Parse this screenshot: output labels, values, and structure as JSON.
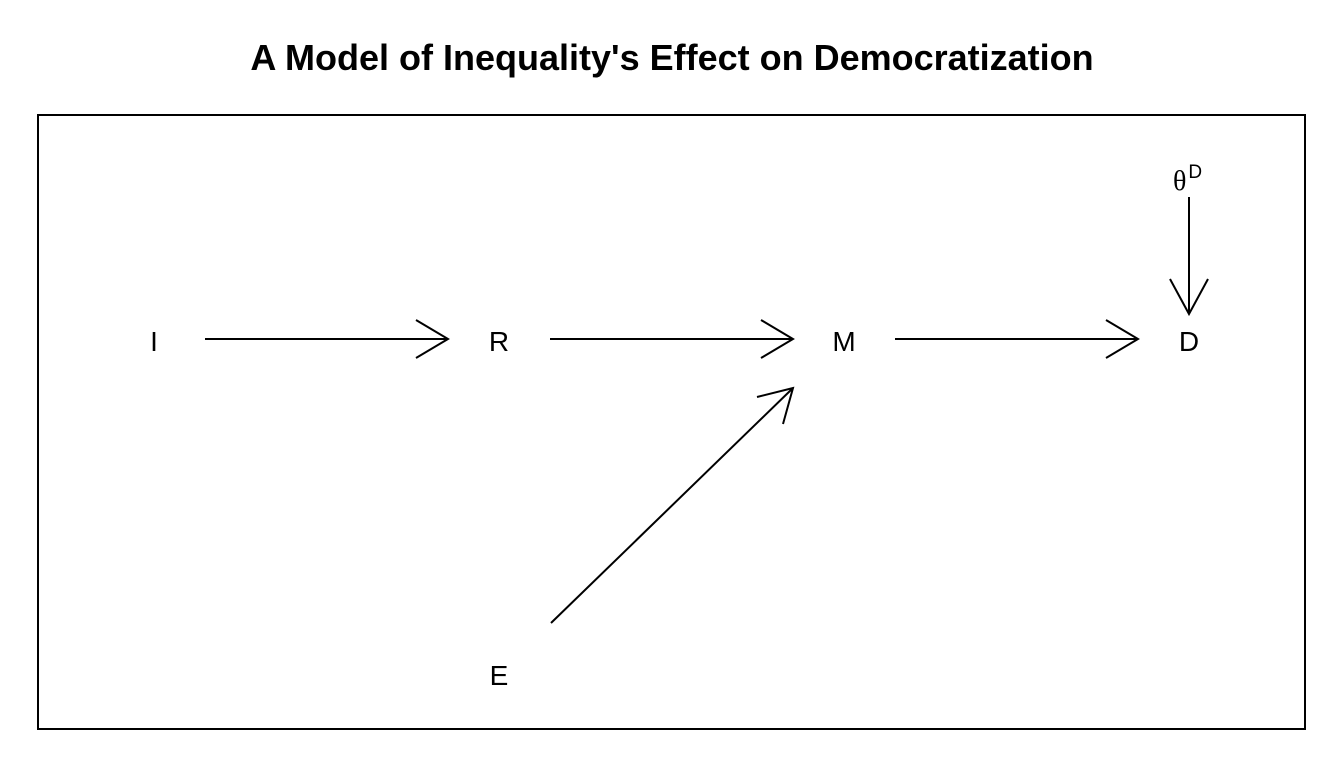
{
  "title": "A Model of Inequality's Effect on Democratization",
  "nodes": {
    "I": "I",
    "R": "R",
    "M": "M",
    "D": "D",
    "E": "E",
    "theta": "θ",
    "theta_sup": "D"
  },
  "edges": [
    {
      "from": "I",
      "to": "R"
    },
    {
      "from": "R",
      "to": "M"
    },
    {
      "from": "M",
      "to": "D"
    },
    {
      "from": "E",
      "to": "M"
    },
    {
      "from": "theta",
      "to": "D"
    }
  ],
  "colors": {
    "line": "#000000",
    "background": "#ffffff"
  }
}
